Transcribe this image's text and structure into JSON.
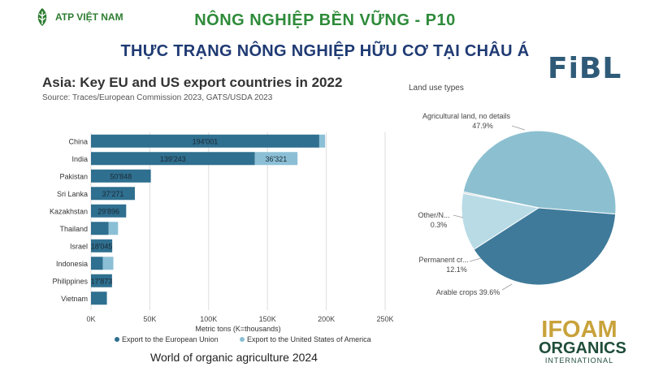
{
  "header": {
    "brand": "ATP VIỆT NAM",
    "title_line1": "NÔNG NGHIỆP BỀN VỮNG - P10",
    "title_line2": "THỰC TRẠNG NÔNG NGHIỆP HỮU CƠ TẠI CHÂU Á",
    "fibl_logo": "FiBL"
  },
  "caption": "World of organic agriculture 2024",
  "ifoam_logo": {
    "line1": "IFOAM",
    "line2": "ORGANICS",
    "line3": "INTERNATIONAL"
  },
  "colors": {
    "eu": "#2f6f8f",
    "us": "#8bbfd6",
    "pie_agri": "#8cc0d0",
    "pie_arable": "#3f7a9a",
    "pie_perm": "#b9dbe6",
    "pie_other": "#c8c8c8"
  },
  "chart_data": [
    {
      "type": "bar",
      "orientation": "horizontal",
      "stacked": true,
      "title": "Asia: Key EU and US export countries in 2022",
      "subtitle": "Source: Traces/European Commission 2023, GATS/USDA 2023",
      "xlabel": "Metric tons (K=thousands)",
      "xlim": [
        0,
        250000
      ],
      "xticks": [
        "0K",
        "50K",
        "100K",
        "150K",
        "200K",
        "250K"
      ],
      "categories": [
        "China",
        "India",
        "Pakistan",
        "Sri Lanka",
        "Kazakhstan",
        "Thailand",
        "Israel",
        "Indonesia",
        "Philippines",
        "Vietnam"
      ],
      "series": [
        {
          "name": "Export to the European Union",
          "values": [
            194001,
            139243,
            50848,
            37271,
            29896,
            15000,
            18045,
            10000,
            17873,
            13500
          ],
          "labels": [
            "194'001",
            "139'243",
            "50'848",
            "37'271",
            "29'896",
            "",
            "18'045",
            "",
            "17'873",
            ""
          ]
        },
        {
          "name": "Export to the United States of America",
          "values": [
            5000,
            36321,
            0,
            0,
            0,
            8000,
            0,
            9000,
            0,
            0
          ],
          "labels": [
            "",
            "36'321",
            "",
            "",
            "",
            "",
            "",
            "",
            "",
            ""
          ]
        }
      ],
      "legend": "bottom"
    },
    {
      "type": "pie",
      "title": "Land use types",
      "slices": [
        {
          "label": "Agricultural land, no details",
          "value": 47.9,
          "pct": "47.9%"
        },
        {
          "label": "Arable crops",
          "value": 39.6,
          "pct": "39.6%"
        },
        {
          "label": "Permanent cr...",
          "value": 12.1,
          "pct": "12.1%"
        },
        {
          "label": "Other/N...",
          "value": 0.3,
          "pct": "0.3%"
        }
      ]
    }
  ]
}
